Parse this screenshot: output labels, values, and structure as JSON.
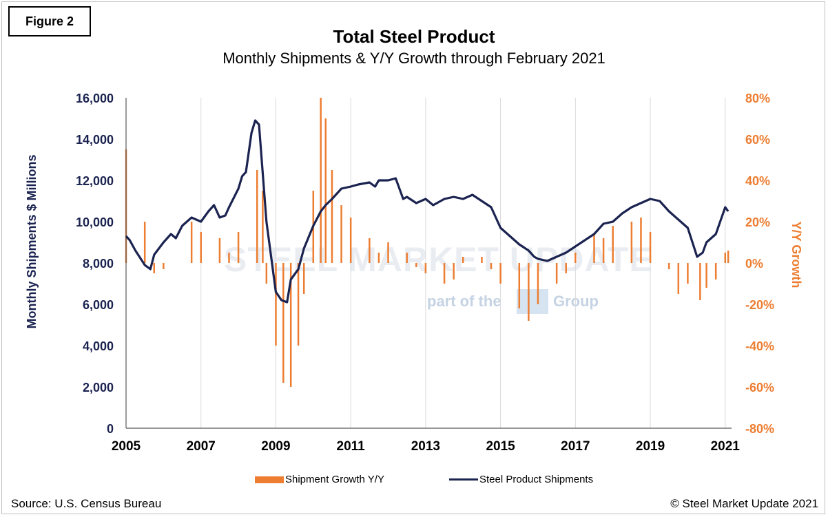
{
  "figure_label": "Figure 2",
  "source": "Source: U.S. Census Bureau",
  "copyright": "© Steel Market Update 2021",
  "watermark": {
    "brand": "STEEL MARKET UPDATE",
    "sub": "part of the",
    "group": "Group"
  },
  "colors": {
    "bars": "#ED7D31",
    "line": "#1b2350",
    "left_axis_text": "#1b2350",
    "right_axis_text": "#ED7D31"
  },
  "chart_data": {
    "type": "bar",
    "title": "Total Steel Product",
    "subtitle": "Monthly Shipments & Y/Y Growth through February 2021",
    "ylabel": "Monthly Shipments $ Millions",
    "y2label": "Y/Y Growth",
    "ylim": [
      0,
      16000
    ],
    "y2lim": [
      -80,
      80
    ],
    "xlim": [
      2005.0,
      2021.17
    ],
    "y_ticks": [
      "0",
      "2,000",
      "4,000",
      "6,000",
      "8,000",
      "10,000",
      "12,000",
      "14,000",
      "16,000"
    ],
    "y2_ticks": [
      "-80%",
      "-60%",
      "-40%",
      "-20%",
      "0%",
      "20%",
      "40%",
      "60%",
      "80%"
    ],
    "x_ticks": [
      "2005",
      "2007",
      "2009",
      "2011",
      "2013",
      "2015",
      "2017",
      "2019",
      "2021"
    ],
    "grid": "vertical",
    "legend": "bottom",
    "series": [
      {
        "name": "Shipment Growth Y/Y",
        "type": "bar",
        "axis": "right",
        "x": [
          2005.0,
          2005.5,
          2005.75,
          2006.0,
          2006.5,
          2006.75,
          2007.0,
          2007.5,
          2007.75,
          2008.0,
          2008.5,
          2008.65,
          2008.75,
          2009.0,
          2009.2,
          2009.4,
          2009.6,
          2009.75,
          2010.0,
          2010.2,
          2010.33,
          2010.5,
          2010.75,
          2011.0,
          2011.5,
          2011.75,
          2012.0,
          2012.5,
          2012.75,
          2013.0,
          2013.5,
          2013.75,
          2014.0,
          2014.5,
          2014.75,
          2015.0,
          2015.5,
          2015.75,
          2016.0,
          2016.5,
          2016.75,
          2017.0,
          2017.5,
          2017.75,
          2018.0,
          2018.5,
          2018.75,
          2019.0,
          2019.5,
          2019.75,
          2020.0,
          2020.33,
          2020.5,
          2020.75,
          2021.0,
          2021.08
        ],
        "values": [
          55,
          20,
          -5,
          -3,
          0,
          20,
          15,
          12,
          5,
          15,
          45,
          35,
          -10,
          -40,
          -58,
          -60,
          -40,
          -15,
          35,
          80,
          70,
          45,
          28,
          22,
          12,
          5,
          10,
          5,
          -2,
          -5,
          -10,
          -8,
          3,
          3,
          -3,
          -10,
          -22,
          -28,
          -20,
          -10,
          -5,
          5,
          14,
          12,
          18,
          20,
          22,
          15,
          -3,
          -15,
          -10,
          -18,
          -12,
          -8,
          5,
          6
        ]
      },
      {
        "name": "Steel Product Shipments",
        "type": "line",
        "axis": "left",
        "x": [
          2005.0,
          2005.1,
          2005.25,
          2005.5,
          2005.65,
          2005.75,
          2006.0,
          2006.2,
          2006.33,
          2006.5,
          2006.75,
          2007.0,
          2007.2,
          2007.35,
          2007.5,
          2007.65,
          2007.75,
          2008.0,
          2008.1,
          2008.2,
          2008.35,
          2008.45,
          2008.55,
          2008.75,
          2009.0,
          2009.15,
          2009.3,
          2009.4,
          2009.6,
          2009.75,
          2010.0,
          2010.2,
          2010.33,
          2010.5,
          2010.75,
          2011.0,
          2011.2,
          2011.5,
          2011.65,
          2011.75,
          2012.0,
          2012.2,
          2012.4,
          2012.5,
          2012.75,
          2013.0,
          2013.2,
          2013.5,
          2013.75,
          2014.0,
          2014.25,
          2014.5,
          2014.75,
          2015.0,
          2015.25,
          2015.5,
          2015.75,
          2015.9,
          2016.0,
          2016.25,
          2016.5,
          2016.75,
          2017.0,
          2017.25,
          2017.5,
          2017.75,
          2018.0,
          2018.25,
          2018.5,
          2018.75,
          2019.0,
          2019.25,
          2019.5,
          2019.75,
          2020.0,
          2020.25,
          2020.4,
          2020.5,
          2020.75,
          2021.0,
          2021.08
        ],
        "values": [
          9300,
          9100,
          8600,
          7900,
          7700,
          8400,
          9000,
          9400,
          9200,
          9800,
          10200,
          10000,
          10500,
          10800,
          10200,
          10300,
          10700,
          11600,
          12200,
          12400,
          14300,
          14900,
          14700,
          10000,
          6600,
          6200,
          6100,
          7200,
          7700,
          8700,
          9800,
          10500,
          10800,
          11100,
          11600,
          11700,
          11800,
          11900,
          11700,
          12000,
          12000,
          12100,
          11100,
          11200,
          10900,
          11100,
          10800,
          11100,
          11200,
          11100,
          11300,
          11000,
          10700,
          9700,
          9300,
          8900,
          8600,
          8300,
          8200,
          8100,
          8300,
          8500,
          8800,
          9100,
          9400,
          9900,
          10000,
          10400,
          10700,
          10900,
          11100,
          11000,
          10500,
          10100,
          9700,
          8300,
          8500,
          9000,
          9400,
          10700,
          10500
        ]
      }
    ]
  }
}
